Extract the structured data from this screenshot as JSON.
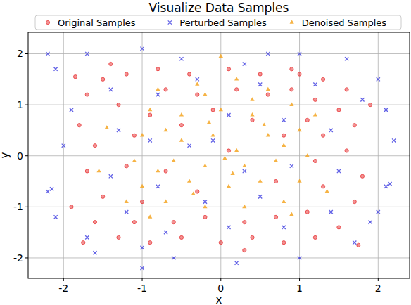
{
  "chart_data": {
    "type": "scatter",
    "title": "Visualize Data Samples",
    "x_label": "x",
    "y_label": "y",
    "xlim": [
      -2.45,
      2.4
    ],
    "ylim": [
      -2.4,
      2.42
    ],
    "xticks": [
      -2,
      -1,
      0,
      1,
      2
    ],
    "yticks": [
      -2,
      -1,
      0,
      1,
      2
    ],
    "grid": true,
    "legend": "top",
    "series": [
      {
        "name": "Original Samples",
        "color": "#e8393a",
        "marker": "circle",
        "x": [
          -1.7,
          -1.5,
          -1.2,
          -0.8,
          -0.4,
          0.1,
          0.5,
          0.9,
          1.3,
          1.6,
          -1.8,
          -1.6,
          -1.7,
          -1.5,
          -1.6,
          -1.3,
          -0.9,
          -0.5,
          0,
          0.4,
          0.8,
          1.2,
          1.5,
          1.7,
          1.8,
          1.6,
          1.7,
          1.5,
          1.2,
          0.9,
          -1.3,
          -1.1,
          -1.2,
          -1.0,
          -1.1,
          -0.6,
          -0.2,
          0.3,
          0.7,
          1.1,
          1.3,
          1.2,
          1.3,
          0.6,
          0.2,
          -0.3,
          -0.7,
          -0.9,
          -0.5,
          0.4,
          0.8,
          0.7,
          -0.3,
          -0.7,
          0.1,
          -1.9,
          1.9,
          1.75,
          -1.75,
          -1.4,
          1.0,
          0.3,
          -1.85,
          1.1,
          -0.1
        ],
        "values": [
          1.2,
          1.5,
          1.6,
          1.7,
          1.6,
          1.7,
          1.6,
          1.7,
          1.5,
          1.3,
          0.6,
          0.2,
          -0.3,
          -0.8,
          -1.3,
          -1.6,
          -1.7,
          -1.6,
          -1.7,
          -1.6,
          -1.7,
          -1.6,
          -1.4,
          -0.9,
          -0.4,
          0.1,
          0.6,
          0.9,
          1.1,
          1.3,
          1.0,
          0.4,
          -0.2,
          -0.9,
          -1.3,
          -1.3,
          -1.2,
          -1.3,
          -1.2,
          -1.1,
          -0.6,
          -0.1,
          0.4,
          1.2,
          1.3,
          1.2,
          1.3,
          0.8,
          0.6,
          0.7,
          0.4,
          -0.5,
          -0.7,
          -0.3,
          0.1,
          -1.0,
          1.0,
          -1.75,
          -1.7,
          1.8,
          1.6,
          -1.85,
          1.55,
          0.7,
          0.9
        ]
      },
      {
        "name": "Perturbed Samples",
        "color": "#3a3ae0",
        "marker": "x",
        "x": [
          -2.2,
          -2.1,
          -1.7,
          -1.0,
          -0.5,
          0.3,
          1.0,
          1.6,
          2.0,
          2.1,
          2.2,
          2.1,
          2.0,
          1.7,
          1.0,
          0.2,
          -0.6,
          -1.0,
          -1.7,
          -2.1,
          -2.2,
          -2.0,
          -1.9,
          -1.4,
          -1.3,
          -1.4,
          -1.2,
          -0.7,
          0.1,
          0.8,
          1.4,
          1.5,
          1.4,
          1.2,
          0.5,
          -0.3,
          -0.8,
          -0.9,
          -0.8,
          -0.2,
          0.5,
          0.9,
          0.8,
          0.1,
          -0.4,
          0.3,
          2.15,
          -1.6,
          1.9,
          -2.15,
          0.6,
          -1.0,
          1.8,
          -0.1
        ],
        "values": [
          2.0,
          1.7,
          2.0,
          2.1,
          1.9,
          1.8,
          2.0,
          1.9,
          1.5,
          0.9,
          0.3,
          -0.6,
          -1.1,
          -1.7,
          -2.0,
          -2.1,
          -2.0,
          -2.2,
          -1.6,
          -1.2,
          -0.7,
          0.2,
          0.9,
          1.3,
          0.5,
          -0.4,
          -1.1,
          -1.5,
          -1.4,
          -1.4,
          -1.1,
          -0.3,
          0.5,
          1.4,
          1.4,
          1.5,
          1.2,
          0.3,
          -0.6,
          -0.9,
          -0.8,
          -0.2,
          0.7,
          0.8,
          0.2,
          -0.3,
          -0.55,
          -1.9,
          -1.3,
          -0.65,
          2.0,
          -1.8,
          1.1,
          0.3
        ]
      },
      {
        "name": "Denoised Samples",
        "color": "#f5a623",
        "marker": "triangle",
        "x": [
          -0.8,
          -0.3,
          0.2,
          0.6,
          0.9,
          1.0,
          1.1,
          1.0,
          0.8,
          0.3,
          -0.2,
          -0.7,
          -1.0,
          -1.1,
          -1.0,
          -0.9,
          -0.5,
          0.0,
          0.4,
          0.6,
          0.7,
          0.5,
          0.1,
          -0.4,
          -0.6,
          -0.5,
          -0.1,
          0.2,
          -0.2,
          0.3,
          0.0,
          -1.45,
          -1.55,
          1.35,
          0.9,
          -0.9,
          -0.2,
          0.4,
          0.8,
          -0.7,
          -0.35,
          0.15,
          0.55,
          -0.15,
          -0.8,
          1.2,
          -1.2,
          0.05
        ],
        "values": [
          1.3,
          1.4,
          1.5,
          1.3,
          1.0,
          0.5,
          0.0,
          -0.5,
          -0.9,
          -1.0,
          -1.0,
          -0.9,
          -0.6,
          -0.1,
          0.4,
          0.9,
          0.8,
          0.9,
          0.8,
          0.4,
          -0.1,
          -0.5,
          -0.6,
          -0.5,
          -0.1,
          0.3,
          0.4,
          0.1,
          -0.2,
          -0.2,
          1.95,
          0.55,
          -0.3,
          -0.7,
          -1.15,
          -1.2,
          1.2,
          1.1,
          0.2,
          0.5,
          -0.75,
          -0.35,
          0.6,
          0.65,
          -0.3,
          0.8,
          -0.9,
          -0.05
        ]
      }
    ]
  }
}
